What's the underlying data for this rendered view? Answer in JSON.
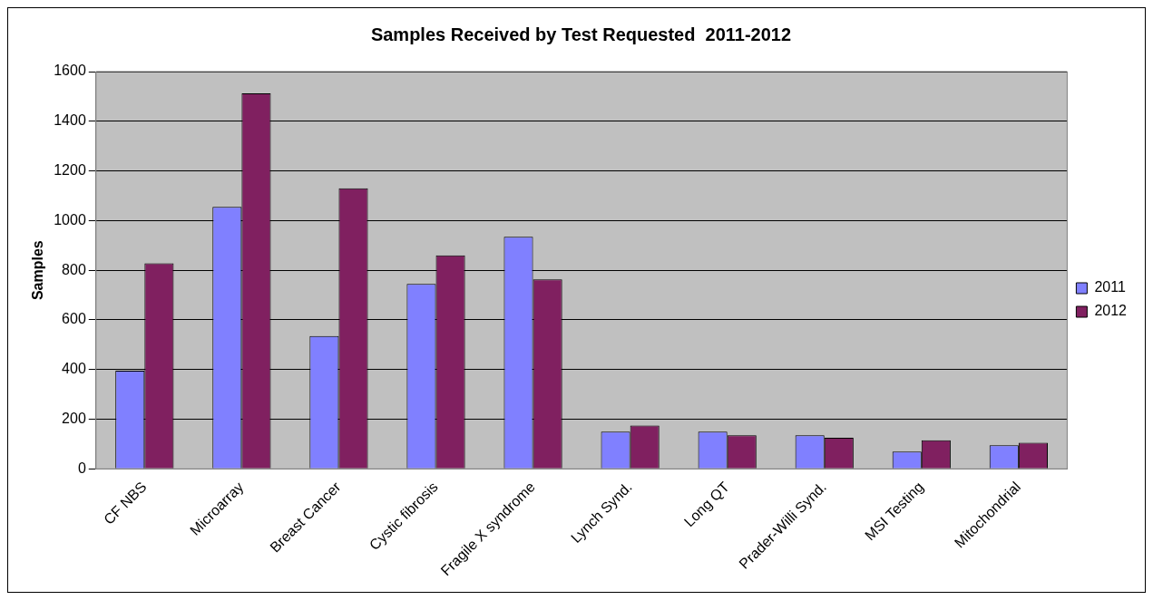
{
  "chart_data": {
    "type": "bar",
    "title": "Samples Received by Test Requested  2011-2012",
    "ylabel": "Samples",
    "categories": [
      "CF NBS",
      "Microarray",
      "Breast Cancer",
      "Cystic fibrosis",
      "Fragile X syndrome",
      "Lynch Synd.",
      "Long QT",
      "Prader-Willi Synd.",
      "MSI Testing",
      "Mitochondrial"
    ],
    "series": [
      {
        "name": "2011",
        "color": "#8080ff",
        "values": [
          395,
          1055,
          535,
          745,
          935,
          150,
          150,
          135,
          70,
          95
        ]
      },
      {
        "name": "2012",
        "color": "#802060",
        "values": [
          828,
          1512,
          1130,
          860,
          763,
          175,
          135,
          125,
          115,
          105
        ]
      }
    ],
    "ylim": [
      0,
      1600
    ],
    "yticks": [
      0,
      200,
      400,
      600,
      800,
      1000,
      1200,
      1400,
      1600
    ],
    "grid": "y",
    "legend": "right"
  }
}
